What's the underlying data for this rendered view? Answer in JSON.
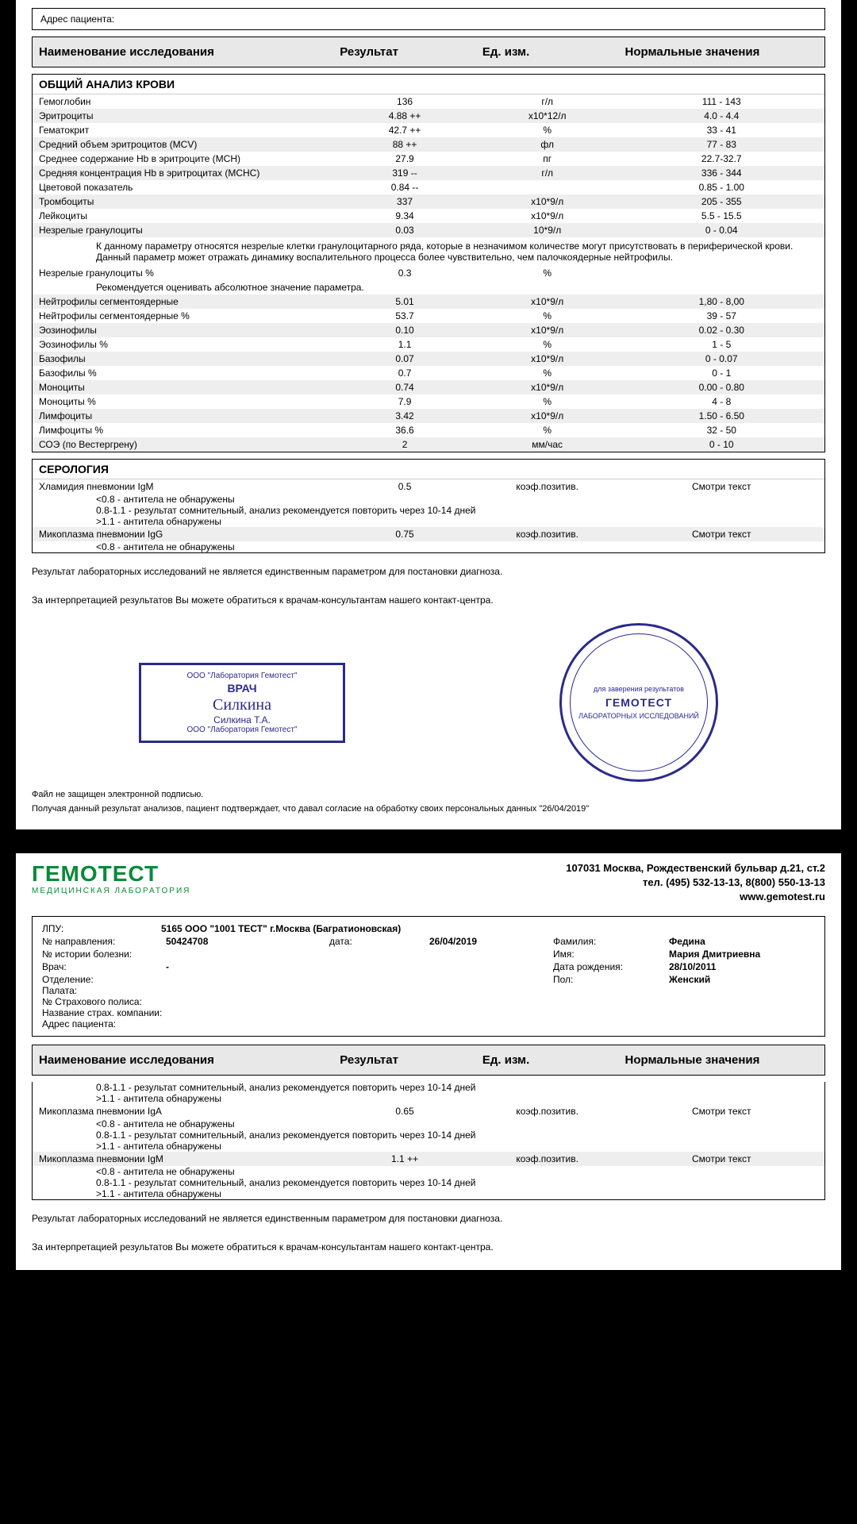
{
  "page1": {
    "patientAddrLabel": "Адрес пациента:",
    "headers": {
      "name": "Наименование исследования",
      "result": "Результат",
      "unit": "Ед. изм.",
      "normal": "Нормальные значения"
    },
    "section1": {
      "title": "ОБЩИЙ АНАЛИЗ КРОВИ",
      "rows": [
        {
          "n": "Гемоглобин",
          "r": "136",
          "u": "г/л",
          "norm": "111 - 143",
          "alt": false
        },
        {
          "n": "Эритроциты",
          "r": "4.88 ++",
          "u": "x10*12/л",
          "norm": "4.0 - 4.4",
          "alt": true
        },
        {
          "n": "Гематокрит",
          "r": "42.7 ++",
          "u": "%",
          "norm": "33 - 41",
          "alt": false
        },
        {
          "n": "Средний объем эритроцитов (MCV)",
          "r": "88 ++",
          "u": "фл",
          "norm": "77 - 83",
          "alt": true
        },
        {
          "n": "Среднее содержание Hb в эритроците (MCH)",
          "r": "27.9",
          "u": "пг",
          "norm": "22.7-32.7",
          "alt": false
        },
        {
          "n": "Средняя концентрация Hb в эритроцитах (MCHC)",
          "r": "319 --",
          "u": "г/л",
          "norm": "336 - 344",
          "alt": true
        },
        {
          "n": "Цветовой показатель",
          "r": "0.84 --",
          "u": "",
          "norm": "0.85 - 1.00",
          "alt": false
        },
        {
          "n": "Тромбоциты",
          "r": "337",
          "u": "x10*9/л",
          "norm": "205 - 355",
          "alt": true
        },
        {
          "n": "Лейкоциты",
          "r": "9.34",
          "u": "x10*9/л",
          "norm": "5.5 - 15.5",
          "alt": false
        },
        {
          "n": "Незрелые гранулоциты",
          "r": "0.03",
          "u": "10*9/л",
          "norm": "0 - 0.04",
          "alt": true
        }
      ],
      "note1": "К данному параметру относятся незрелые клетки гранулоцитарного ряда, которые  в незначимом количестве могут присутствовать в периферической крови. Данный параметр может отражать динамику воспалительного процесса более чувствительно, чем палочкоядерные нейтрофилы.",
      "rows2": [
        {
          "n": "Незрелые гранулоциты %",
          "r": "0.3",
          "u": "%",
          "norm": "",
          "alt": false
        }
      ],
      "note2": "Рекомендуется оценивать абсолютное значение параметра.",
      "rows3": [
        {
          "n": "Нейтрофилы сегментоядерные",
          "r": "5.01",
          "u": "x10*9/л",
          "norm": "1,80 - 8,00",
          "alt": true
        },
        {
          "n": "Нейтрофилы сегментоядерные %",
          "r": "53.7",
          "u": "%",
          "norm": "39 - 57",
          "alt": false
        },
        {
          "n": "Эозинофилы",
          "r": "0.10",
          "u": "x10*9/л",
          "norm": "0.02 - 0.30",
          "alt": true
        },
        {
          "n": "Эозинофилы %",
          "r": "1.1",
          "u": "%",
          "norm": "1 - 5",
          "alt": false
        },
        {
          "n": "Базофилы",
          "r": "0.07",
          "u": "x10*9/л",
          "norm": "0 - 0.07",
          "alt": true
        },
        {
          "n": "Базофилы %",
          "r": "0.7",
          "u": "%",
          "norm": "0 - 1",
          "alt": false
        },
        {
          "n": "Моноциты",
          "r": "0.74",
          "u": "x10*9/л",
          "norm": "0.00 - 0.80",
          "alt": true
        },
        {
          "n": "Моноциты %",
          "r": "7.9",
          "u": "%",
          "norm": "4 - 8",
          "alt": false
        },
        {
          "n": "Лимфоциты",
          "r": "3.42",
          "u": "x10*9/л",
          "norm": "1.50 - 6.50",
          "alt": true
        },
        {
          "n": "Лимфоциты %",
          "r": "36.6",
          "u": "%",
          "norm": "32 - 50",
          "alt": false
        },
        {
          "n": "СОЭ (по Вестергрену)",
          "r": "2",
          "u": "мм/час",
          "norm": "0 - 10",
          "alt": true
        }
      ]
    },
    "section2": {
      "title": "СЕРОЛОГИЯ",
      "rows": [
        {
          "n": "Хламидия пневмонии IgM",
          "r": "0.5",
          "u": "коэф.позитив.",
          "norm": "Смотри текст",
          "alt": false
        }
      ],
      "interp1": [
        "<0.8       - антитела не обнаружены",
        "0.8-1.1   - результат сомнительный, анализ рекомендуется повторить через 10-14 дней",
        ">1.1       - антитела обнаружены"
      ],
      "rows2": [
        {
          "n": "Микоплазма пневмонии IgG",
          "r": "0.75",
          "u": "коэф.позитив.",
          "norm": "Смотри текст",
          "alt": true
        }
      ],
      "interp2": [
        "<0.8       - антитела не обнаружены"
      ]
    },
    "footer": {
      "l1": "Результат лабораторных исследований не является единственным параметром для постановки диагноза.",
      "l2": "За интерпретацией результатов Вы можете обратиться к врачам-консультантам нашего контакт-центра.",
      "fine1": "Файл не защищен электронной подписью.",
      "fine2": "Получая данный результат анализов, пациент подтверждает, что давал согласие на обработку своих персональных данных \"26/04/2019\""
    },
    "stampDoc": {
      "top": "ООО \"Лаборатория Гемотест\"",
      "mid": "ВРАЧ",
      "sig": "Силкина",
      "name": "Силкина Т.А.",
      "bottom": "ООО \"Лаборатория Гемотест\""
    },
    "stampRound": {
      "t1": "для заверения результатов",
      "t2": "ГЕМОТЕСТ",
      "t3": "ЛАБОРАТОРНЫХ ИССЛЕДОВАНИЙ"
    }
  },
  "page2": {
    "logo": {
      "main": "ГЕМОТЕСТ",
      "sub": "МЕДИЦИНСКАЯ ЛАБОРАТОРИЯ"
    },
    "addr": {
      "l1": "107031 Москва, Рождественский бульвар д.21, ст.2",
      "l2": "тел. (495) 532-13-13, 8(800) 550-13-13",
      "site": "www.gemotest.ru"
    },
    "info": {
      "lpuLabel": "ЛПУ:",
      "lpuVal": "5165  ООО \"1001 ТЕСТ\" г.Москва (Багратионовская)",
      "dirLabel": "№ направления:",
      "dirVal": "50424708",
      "dateLabel": "дата:",
      "dateVal": "26/04/2019",
      "surnameLabel": "Фамилия:",
      "surnameVal": "Федина",
      "histLabel": "№  истории болезни:",
      "histVal": "",
      "nameLabel": "Имя:",
      "nameVal": "Мария Дмитриевна",
      "docLabel": "Врач:",
      "docVal": "-",
      "dobLabel": "Дата рождения:",
      "dobVal": "28/10/2011",
      "deptLabel": "Отделение:",
      "deptVal": "",
      "sexLabel": "Пол:",
      "sexVal": "Женский",
      "wardLabel": "Палата:",
      "insNumLabel": "№ Страхового полиса:",
      "insCompLabel": "Название страх. компании:",
      "addrLabel": "Адрес пациента:"
    },
    "headers": {
      "name": "Наименование исследования",
      "result": "Результат",
      "unit": "Ед. изм.",
      "normal": "Нормальные значения"
    },
    "interp1": [
      "0.8-1.1   - результат сомнительный, анализ рекомендуется повторить через 10-14 дней",
      ">1.1       - антитела обнаружены"
    ],
    "rows1": [
      {
        "n": "Микоплазма пневмонии IgA",
        "r": "0.65",
        "u": "коэф.позитив.",
        "norm": "Смотри текст",
        "alt": false
      }
    ],
    "interp2": [
      "<0.8       - антитела не обнаружены",
      "0.8-1.1   - результат сомнительный, анализ рекомендуется повторить через 10-14 дней",
      ">1.1       - антитела обнаружены"
    ],
    "rows2": [
      {
        "n": "Микоплазма пневмонии IgM",
        "r": "1.1 ++",
        "u": "коэф.позитив.",
        "norm": "Смотри текст",
        "alt": true
      }
    ],
    "interp3": [
      "<0.8       - антитела не обнаружены",
      "0.8-1.1   - результат сомнительный, анализ рекомендуется повторить через 10-14 дней",
      ">1.1       - антитела обнаружены"
    ],
    "footer": {
      "l1": "Результат лабораторных исследований не является единственным параметром для постановки диагноза.",
      "l2": "За интерпретацией результатов Вы можете обратиться к врачам-консультантам нашего контакт-центра."
    }
  }
}
